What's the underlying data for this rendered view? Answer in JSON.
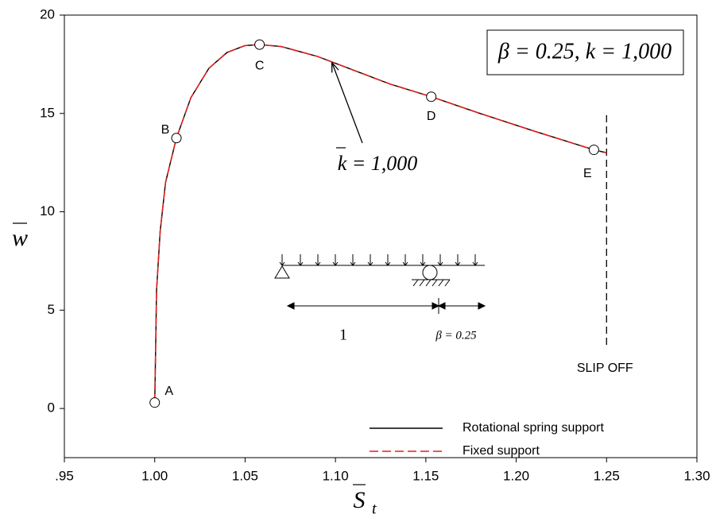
{
  "chart_data": {
    "type": "line",
    "x_label": "S",
    "x_label_sub": "t",
    "y_label": "w",
    "xlim": [
      0.95,
      1.3
    ],
    "xticks": [
      {
        "value": 0.95,
        "label": ".95"
      },
      {
        "value": 1.0,
        "label": "1.00"
      },
      {
        "value": 1.05,
        "label": "1.05"
      },
      {
        "value": 1.1,
        "label": "1.10"
      },
      {
        "value": 1.15,
        "label": "1.15"
      },
      {
        "value": 1.2,
        "label": "1.20"
      },
      {
        "value": 1.25,
        "label": "1.25"
      },
      {
        "value": 1.3,
        "label": "1.30"
      }
    ],
    "ylim": [
      -2.5,
      20
    ],
    "yticks": [
      0,
      5,
      10,
      15,
      20
    ],
    "x": [
      1.0,
      1.0005,
      1.001,
      1.003,
      1.006,
      1.012,
      1.02,
      1.03,
      1.04,
      1.05,
      1.058,
      1.07,
      1.09,
      1.11,
      1.13,
      1.153,
      1.18,
      1.21,
      1.243,
      1.25
    ],
    "series": [
      {
        "name": "Rotational spring support",
        "color": "#000000",
        "dash": false,
        "values": [
          0.3,
          3,
          6,
          9,
          11.5,
          13.75,
          15.8,
          17.3,
          18.1,
          18.45,
          18.5,
          18.4,
          17.9,
          17.2,
          16.5,
          15.85,
          15.0,
          14.1,
          13.15,
          13.0
        ]
      },
      {
        "name": "Fixed support",
        "color": "#e0201b",
        "dash": true,
        "values": [
          0.3,
          3,
          6,
          9,
          11.5,
          13.75,
          15.8,
          17.3,
          18.1,
          18.45,
          18.5,
          18.4,
          17.9,
          17.2,
          16.5,
          15.85,
          15.0,
          14.1,
          13.15,
          13.0
        ]
      }
    ],
    "points": [
      {
        "label": "A",
        "x": 1.0,
        "y": 0.3
      },
      {
        "label": "B",
        "x": 1.012,
        "y": 13.75
      },
      {
        "label": "C",
        "x": 1.058,
        "y": 18.5
      },
      {
        "label": "D",
        "x": 1.153,
        "y": 15.85
      },
      {
        "label": "E",
        "x": 1.243,
        "y": 13.15
      }
    ],
    "vline": {
      "x": 1.25,
      "label": "SLIP OFF"
    },
    "annotation": {
      "text": "k = 1,000",
      "x": 1.098,
      "y": 17.6
    },
    "box_text": "β = 0.25, k = 1,000",
    "inset_span_label": "1",
    "inset_overhang_label": "β = 0.25"
  }
}
